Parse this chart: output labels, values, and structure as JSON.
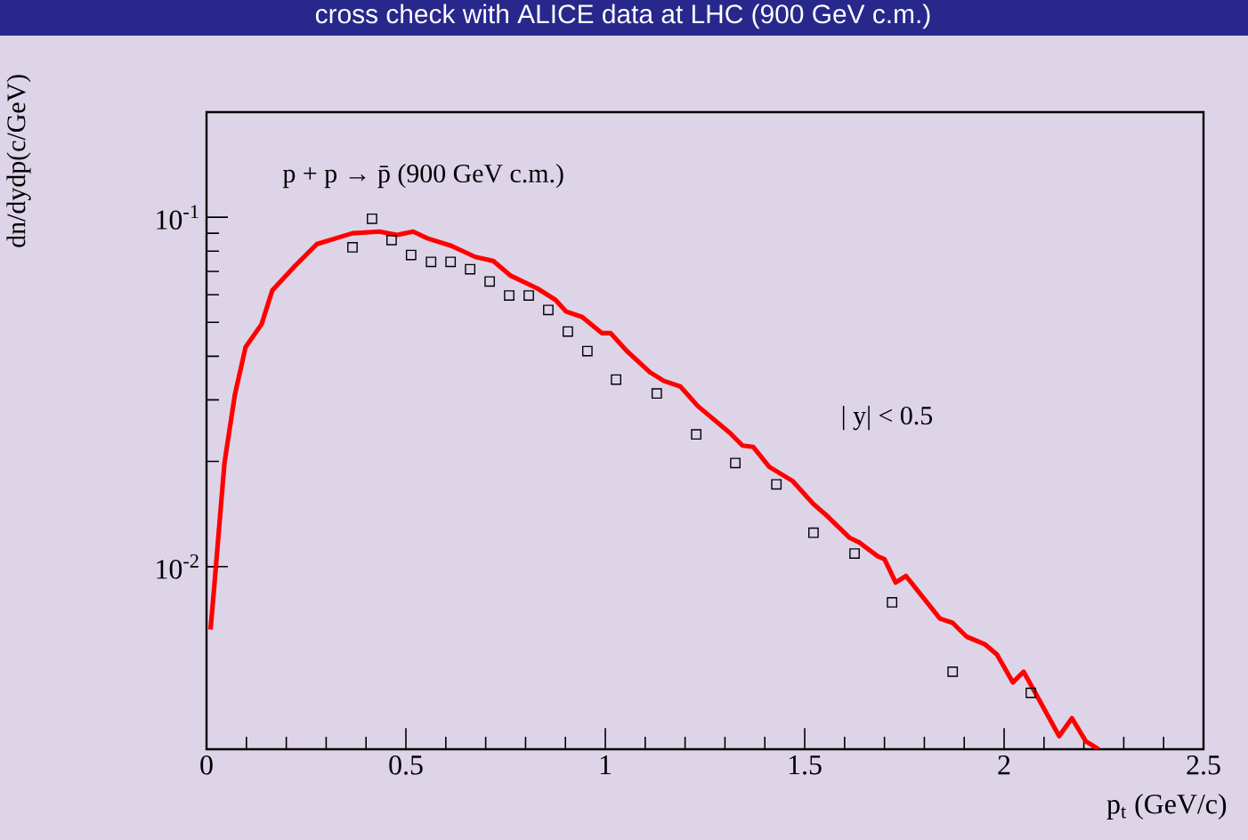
{
  "chart_data": {
    "type": "line",
    "title": "cross check with ALICE data at LHC (900 GeV c.m.)",
    "xlabel": "p$_{t}$  (GeV/c)",
    "ylabel": "dn/dydp(c/GeV)",
    "annotations": [
      "p + p  → p̄  (900 GeV c.m.)",
      "| y| < 0.5"
    ],
    "log": "y",
    "xlim": [
      0,
      2.5
    ],
    "xticks": [
      0,
      0.5,
      1,
      1.5,
      2,
      2.5
    ],
    "ylim": [
      0.003,
      0.2
    ],
    "yticks": [
      {
        "value": 0.01,
        "label": "10$^{-2}$"
      },
      {
        "value": 0.1,
        "label": "10$^{-1}$"
      }
    ],
    "grid": false,
    "series": [
      {
        "color": "#ff0000",
        "marker": "none",
        "line_style": "solid",
        "x": [
          0.01,
          0.018,
          0.045,
          0.071,
          0.098,
          0.138,
          0.165,
          0.219,
          0.277,
          0.366,
          0.433,
          0.478,
          0.518,
          0.554,
          0.612,
          0.674,
          0.719,
          0.763,
          0.83,
          0.875,
          0.902,
          0.942,
          0.991,
          1.013,
          1.054,
          1.112,
          1.147,
          1.188,
          1.232,
          1.313,
          1.344,
          1.371,
          1.411,
          1.469,
          1.522,
          1.558,
          1.612,
          1.638,
          1.683,
          1.7,
          1.728,
          1.754,
          1.839,
          1.871,
          1.906,
          1.951,
          1.982,
          2.022,
          2.049,
          2.138,
          2.17,
          2.205,
          2.237
        ],
        "values": [
          0.0066,
          0.0084,
          0.0198,
          0.031,
          0.0425,
          0.0494,
          0.0618,
          0.072,
          0.0838,
          0.09,
          0.091,
          0.089,
          0.091,
          0.087,
          0.083,
          0.077,
          0.075,
          0.068,
          0.0625,
          0.058,
          0.0537,
          0.0518,
          0.0466,
          0.0466,
          0.0414,
          0.036,
          0.034,
          0.0328,
          0.0288,
          0.0241,
          0.0222,
          0.022,
          0.0193,
          0.0176,
          0.0151,
          0.0139,
          0.0121,
          0.0117,
          0.0107,
          0.0105,
          0.009,
          0.0094,
          0.0071,
          0.0069,
          0.0063,
          0.006,
          0.0056,
          0.00466,
          0.005,
          0.00327,
          0.00368,
          0.00316,
          0.003
        ]
      },
      {
        "type": "scatter",
        "color": "#000000",
        "marker": "square",
        "x": [
          0.366,
          0.415,
          0.464,
          0.513,
          0.563,
          0.612,
          0.661,
          0.71,
          0.759,
          0.808,
          0.857,
          0.906,
          0.955,
          1.027,
          1.129,
          1.228,
          1.326,
          1.429,
          1.522,
          1.625,
          1.719,
          1.871,
          2.067
        ],
        "values": [
          0.082,
          0.099,
          0.086,
          0.078,
          0.0745,
          0.0745,
          0.071,
          0.0655,
          0.0597,
          0.0597,
          0.0543,
          0.0471,
          0.0414,
          0.0343,
          0.0313,
          0.0239,
          0.0198,
          0.0172,
          0.0125,
          0.0109,
          0.0079,
          0.005,
          0.00435
        ]
      }
    ]
  }
}
